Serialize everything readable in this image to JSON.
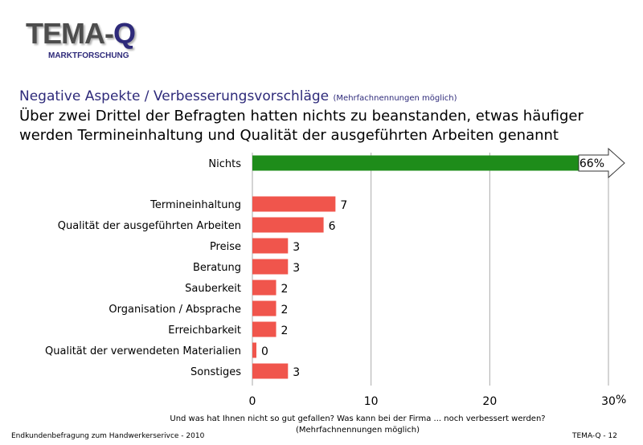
{
  "logo": {
    "brand_main": "TEMA",
    "brand_sep": "-",
    "brand_q": "Q",
    "tagline": "MARKTFORSCHUNG"
  },
  "heading": {
    "title": "Negative Aspekte / Verbesserungsvorschläge",
    "note": "(Mehrfachnennungen möglich)"
  },
  "subtitle": "Über zwei Drittel der Befragten hatten nichts zu beanstanden, etwas häufiger werden Termineinhaltung und Qualität der ausgeführten Arbeiten genannt",
  "chart_data": {
    "type": "bar",
    "orientation": "horizontal",
    "categories": [
      "Nichts",
      "Termineinhaltung",
      "Qualität der ausgeführten Arbeiten",
      "Preise",
      "Beratung",
      "Sauberkeit",
      "Organisation / Absprache",
      "Erreichbarkeit",
      "Qualität der verwendeten Materialien",
      "Sonstiges"
    ],
    "values": [
      66,
      7,
      6,
      3,
      3,
      2,
      2,
      2,
      0,
      3
    ],
    "value_labels": [
      "66%",
      "7",
      "6",
      "3",
      "3",
      "2",
      "2",
      "2",
      "0",
      "3"
    ],
    "xlim": [
      0,
      30
    ],
    "xticks": [
      "0",
      "10",
      "20",
      "30"
    ],
    "unit_label": "%",
    "grid": true,
    "colors": {
      "highlight": "#1e8c1a",
      "bars": "#f0554c",
      "grid": "#aaaaaa"
    },
    "question": "Und was hat Ihnen nicht so gut gefallen? Was kann bei der Firma ... noch verbessert werden?",
    "question_note": "(Mehrfachnennungen möglich)"
  },
  "footer": {
    "left": "Endkundenbefragung zum Handwerkerserivce - 2010",
    "right": "TEMA-Q - 12"
  }
}
